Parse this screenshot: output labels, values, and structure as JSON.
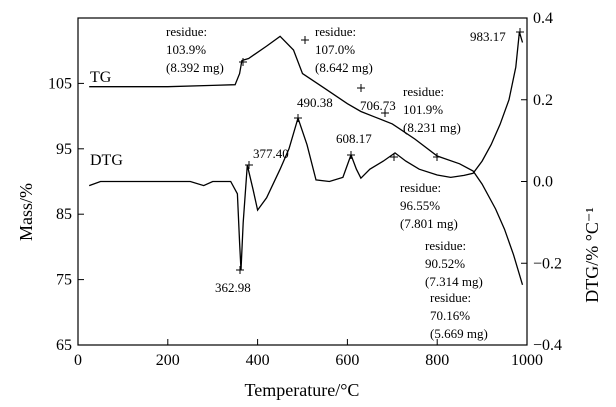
{
  "chart_data": {
    "type": "line",
    "x_label": "Temperature/°C",
    "y_label": "Mass/%",
    "y2_label": "DTG/% °C⁻¹",
    "xlim": [
      0,
      1000
    ],
    "xticks": [
      0,
      200,
      400,
      600,
      800,
      1000
    ],
    "ylim": [
      65,
      115
    ],
    "yticks": [
      65,
      75,
      85,
      95,
      105
    ],
    "y2lim": [
      -0.4,
      0.4
    ],
    "y2ticks": [
      {
        "value": -0.4,
        "label": "−0.4"
      },
      {
        "value": -0.2,
        "label": "−0.2"
      },
      {
        "value": 0,
        "label": "0.0"
      },
      0.2,
      0.4
    ],
    "series": [
      {
        "name": "TG",
        "color": "#000000",
        "axis": "y",
        "x": [
          25,
          100,
          200,
          300,
          350,
          360,
          365,
          380,
          420,
          450,
          480,
          500,
          550,
          600,
          630,
          660,
          700,
          750,
          800,
          850,
          880,
          900,
          930,
          950,
          970,
          990
        ],
        "values": [
          104.5,
          104.5,
          104.5,
          104.7,
          104.8,
          106.5,
          108.5,
          108.8,
          110.7,
          112.2,
          110.1,
          106.5,
          104.2,
          101.9,
          100.7,
          99.9,
          98.8,
          96.5,
          93.9,
          92.7,
          91.6,
          89.6,
          85.8,
          82.7,
          78.8,
          74.2
        ]
      },
      {
        "name": "DTG",
        "color": "#000000",
        "axis": "y2",
        "x": [
          25,
          50,
          100,
          150,
          200,
          250,
          280,
          300,
          340,
          355,
          360,
          363,
          368,
          377,
          390,
          400,
          420,
          450,
          470,
          490,
          510,
          530,
          560,
          590,
          608,
          620,
          630,
          650,
          680,
          706,
          730,
          760,
          800,
          830,
          860,
          880,
          900,
          920,
          940,
          960,
          975,
          983,
          990
        ],
        "values": [
          -0.01,
          0.0,
          0.0,
          0.0,
          0.0,
          0.0,
          -0.01,
          0.0,
          0.0,
          -0.03,
          -0.15,
          -0.217,
          -0.1,
          0.04,
          -0.02,
          -0.07,
          -0.04,
          0.03,
          0.08,
          0.155,
          0.09,
          0.004,
          0.0,
          0.01,
          0.065,
          0.03,
          0.008,
          0.03,
          0.05,
          0.07,
          0.05,
          0.03,
          0.016,
          0.01,
          0.015,
          0.02,
          0.05,
          0.09,
          0.14,
          0.2,
          0.28,
          0.366,
          0.34
        ]
      }
    ],
    "annotations": [
      [
        "residue:",
        "103.9%",
        "(8.392 mg)"
      ],
      [
        "residue:",
        "107.0%",
        "(8.642 mg)"
      ],
      [
        "residue:",
        "101.9%",
        "(8.231 mg)"
      ],
      [
        "residue:",
        "96.55%",
        "(7.801 mg)"
      ],
      [
        "residue:",
        "90.52%",
        "(7.314 mg)"
      ],
      [
        "residue:",
        "70.16%",
        "(5.669 mg)"
      ],
      [
        "377.40"
      ],
      [
        "490.38"
      ],
      [
        "608.17"
      ],
      [
        "706.73"
      ],
      [
        "362.98"
      ],
      [
        "983.17"
      ]
    ]
  }
}
